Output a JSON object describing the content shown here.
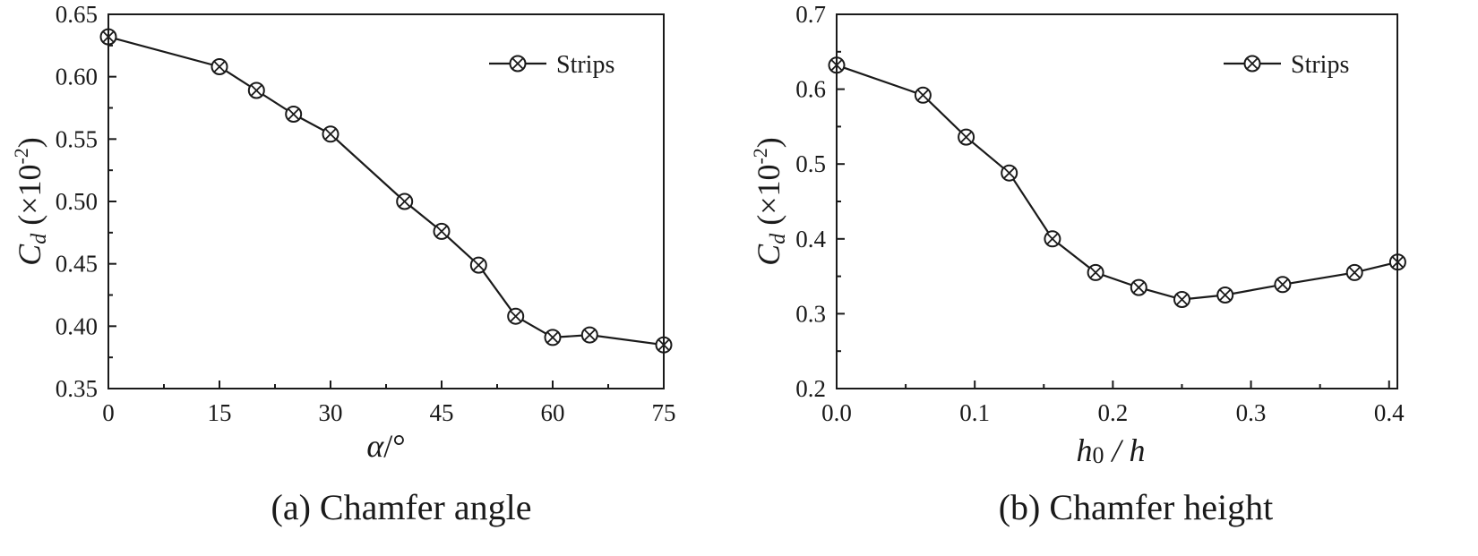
{
  "chart_data": [
    {
      "type": "line",
      "panel": "a",
      "caption": "(a) Chamfer angle",
      "xlabel_symbol": "α",
      "xlabel_unit": "/°",
      "ylabel_main": "C",
      "ylabel_sub": "d",
      "ylabel_paren_open": " (×10",
      "ylabel_exp": "-2",
      "ylabel_paren_close": ")",
      "xlim": [
        0,
        75
      ],
      "ylim": [
        0.35,
        0.65
      ],
      "xticks": [
        0,
        15,
        30,
        45,
        60,
        75
      ],
      "xtick_labels": [
        "0",
        "15",
        "30",
        "45",
        "60",
        "75"
      ],
      "xminor": [
        7.5,
        22.5,
        37.5,
        52.5,
        67.5
      ],
      "yticks": [
        0.35,
        0.4,
        0.45,
        0.5,
        0.55,
        0.6,
        0.65
      ],
      "ytick_labels": [
        "0.35",
        "0.40",
        "0.45",
        "0.50",
        "0.55",
        "0.60",
        "0.65"
      ],
      "yminor": [
        0.375,
        0.425,
        0.475,
        0.525,
        0.575,
        0.625
      ],
      "legend": "top-right",
      "grid": false,
      "series": [
        {
          "name": "Strips",
          "x": [
            0,
            15,
            20,
            25,
            30,
            40,
            45,
            50,
            55,
            60,
            65,
            75
          ],
          "y": [
            0.632,
            0.608,
            0.589,
            0.57,
            0.554,
            0.5,
            0.476,
            0.449,
            0.408,
            0.391,
            0.393,
            0.385
          ]
        }
      ]
    },
    {
      "type": "line",
      "panel": "b",
      "caption": "(b) Chamfer height",
      "xlabel_symbol": "h",
      "xlabel_sub": "0",
      "xlabel_rest": " / h",
      "ylabel_main": "C",
      "ylabel_sub": "d",
      "ylabel_paren_open": " (×10",
      "ylabel_exp": "-2",
      "ylabel_paren_close": ")",
      "xlim": [
        0,
        0.406
      ],
      "ylim": [
        0.2,
        0.7
      ],
      "xticks": [
        0.0,
        0.1,
        0.2,
        0.3,
        0.4
      ],
      "xtick_labels": [
        "0.0",
        "0.1",
        "0.2",
        "0.3",
        "0.4"
      ],
      "xminor": [
        0.05,
        0.15,
        0.25,
        0.35
      ],
      "yticks": [
        0.2,
        0.3,
        0.4,
        0.5,
        0.6,
        0.7
      ],
      "ytick_labels": [
        "0.2",
        "0.3",
        "0.4",
        "0.5",
        "0.6",
        "0.7"
      ],
      "yminor": [
        0.25,
        0.35,
        0.45,
        0.55,
        0.65
      ],
      "legend": "top-right",
      "grid": false,
      "series": [
        {
          "name": "Strips",
          "x": [
            0.0,
            0.0625,
            0.09375,
            0.125,
            0.15625,
            0.1875,
            0.21875,
            0.25,
            0.28125,
            0.3229,
            0.375,
            0.40625
          ],
          "y": [
            0.632,
            0.592,
            0.536,
            0.488,
            0.4,
            0.355,
            0.335,
            0.319,
            0.325,
            0.339,
            0.355,
            0.369
          ]
        }
      ]
    }
  ]
}
